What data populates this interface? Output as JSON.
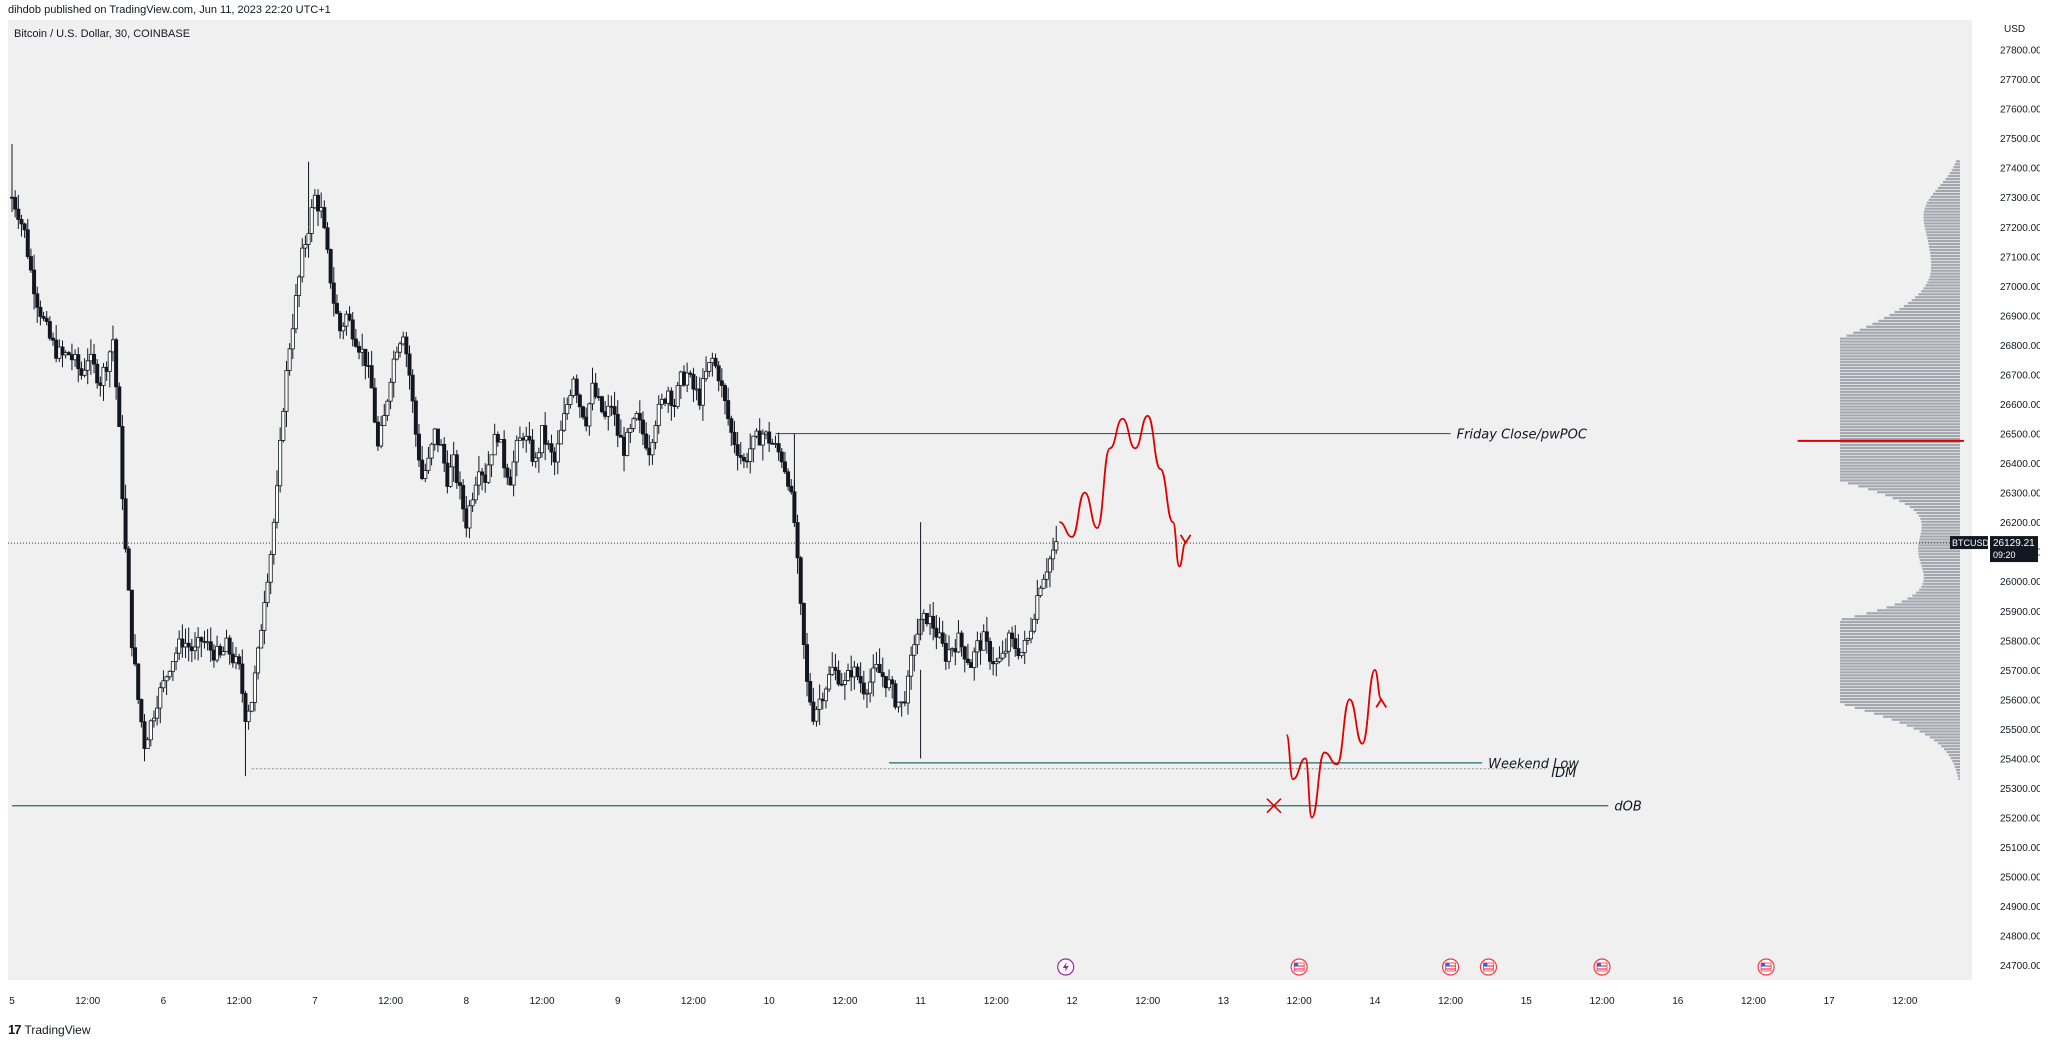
{
  "header": {
    "published_by": "dihdob published on TradingView.com, Jun 11, 2023 22:20 UTC+1"
  },
  "footer": {
    "brand": "TradingView"
  },
  "colors": {
    "plot_bg": "#f0f0f0",
    "candle": "#131722",
    "teal_line": "#1c6e6e",
    "red_drawing": "#e00000",
    "red_level": "#e00000",
    "profile": "#8a8f99",
    "price_label_bg": "#131722",
    "event_red": "#f23645",
    "event_purple": "#9c27b0"
  },
  "chart_data": {
    "type": "candlestick",
    "title": "Bitcoin / U.S. Dollar, 30, COINBASE",
    "symbol": "BTCUSD",
    "y_unit": "USD",
    "ylim": [
      24650,
      27900
    ],
    "y_ticks": [
      "24700.00",
      "24800.00",
      "24900.00",
      "25000.00",
      "25100.00",
      "25200.00",
      "25300.00",
      "25400.00",
      "25500.00",
      "25600.00",
      "25700.00",
      "25800.00",
      "25900.00",
      "26000.00",
      "26100.00",
      "26200.00",
      "26300.00",
      "26400.00",
      "26500.00",
      "26600.00",
      "26700.00",
      "26800.00",
      "26900.00",
      "27000.00",
      "27100.00",
      "27200.00",
      "27300.00",
      "27400.00",
      "27500.00",
      "27600.00",
      "27700.00",
      "27800.00"
    ],
    "x_ticks": [
      {
        "t": 0,
        "label": "5"
      },
      {
        "t": 12,
        "label": "12:00"
      },
      {
        "t": 24,
        "label": "6"
      },
      {
        "t": 36,
        "label": "12:00"
      },
      {
        "t": 48,
        "label": "7"
      },
      {
        "t": 60,
        "label": "12:00"
      },
      {
        "t": 72,
        "label": "8"
      },
      {
        "t": 84,
        "label": "12:00"
      },
      {
        "t": 96,
        "label": "9"
      },
      {
        "t": 108,
        "label": "12:00"
      },
      {
        "t": 120,
        "label": "10"
      },
      {
        "t": 132,
        "label": "12:00"
      },
      {
        "t": 144,
        "label": "11"
      },
      {
        "t": 156,
        "label": "12:00"
      },
      {
        "t": 168,
        "label": "12"
      },
      {
        "t": 180,
        "label": "12:00"
      },
      {
        "t": 192,
        "label": "13"
      },
      {
        "t": 204,
        "label": "12:00"
      },
      {
        "t": 216,
        "label": "14"
      },
      {
        "t": 228,
        "label": "12:00"
      },
      {
        "t": 240,
        "label": "15"
      },
      {
        "t": 252,
        "label": "12:00"
      },
      {
        "t": 264,
        "label": "16"
      },
      {
        "t": 276,
        "label": "12:00"
      },
      {
        "t": 288,
        "label": "17"
      },
      {
        "t": 300,
        "label": "12:00"
      }
    ],
    "price_path": [
      [
        0,
        27300
      ],
      [
        1,
        27250
      ],
      [
        2,
        27180
      ],
      [
        3,
        27050
      ],
      [
        4,
        26950
      ],
      [
        5,
        26880
      ],
      [
        6,
        26820
      ],
      [
        7,
        26780
      ],
      [
        8,
        26760
      ],
      [
        9,
        26770
      ],
      [
        10,
        26740
      ],
      [
        11,
        26700
      ],
      [
        12,
        26760
      ],
      [
        13,
        26720
      ],
      [
        14,
        26680
      ],
      [
        15,
        26740
      ],
      [
        16,
        26820
      ],
      [
        17,
        26500
      ],
      [
        18,
        26100
      ],
      [
        19,
        25800
      ],
      [
        20,
        25600
      ],
      [
        21,
        25450
      ],
      [
        22,
        25520
      ],
      [
        23,
        25600
      ],
      [
        24,
        25650
      ],
      [
        25,
        25720
      ],
      [
        26,
        25760
      ],
      [
        27,
        25800
      ],
      [
        28,
        25780
      ],
      [
        29,
        25760
      ],
      [
        30,
        25800
      ],
      [
        31,
        25780
      ],
      [
        32,
        25760
      ],
      [
        33,
        25740
      ],
      [
        34,
        25780
      ],
      [
        35,
        25740
      ],
      [
        36,
        25700
      ],
      [
        37,
        25550
      ],
      [
        38,
        25600
      ],
      [
        39,
        25750
      ],
      [
        40,
        25950
      ],
      [
        41,
        26100
      ],
      [
        42,
        26300
      ],
      [
        43,
        26600
      ],
      [
        44,
        26800
      ],
      [
        45,
        26950
      ],
      [
        46,
        27100
      ],
      [
        47,
        27200
      ],
      [
        48,
        27300
      ],
      [
        49,
        27250
      ],
      [
        50,
        27100
      ],
      [
        51,
        26950
      ],
      [
        52,
        26850
      ],
      [
        53,
        26900
      ],
      [
        54,
        26850
      ],
      [
        55,
        26800
      ],
      [
        56,
        26750
      ],
      [
        57,
        26650
      ],
      [
        58,
        26450
      ],
      [
        59,
        26550
      ],
      [
        60,
        26700
      ],
      [
        61,
        26800
      ],
      [
        62,
        26850
      ],
      [
        63,
        26700
      ],
      [
        64,
        26500
      ],
      [
        65,
        26350
      ],
      [
        66,
        26400
      ],
      [
        67,
        26500
      ],
      [
        68,
        26450
      ],
      [
        69,
        26350
      ],
      [
        70,
        26400
      ],
      [
        71,
        26300
      ],
      [
        72,
        26200
      ],
      [
        73,
        26300
      ],
      [
        74,
        26400
      ],
      [
        75,
        26350
      ],
      [
        76,
        26450
      ],
      [
        77,
        26500
      ],
      [
        78,
        26400
      ],
      [
        79,
        26350
      ],
      [
        80,
        26450
      ],
      [
        81,
        26500
      ],
      [
        82,
        26450
      ],
      [
        83,
        26400
      ],
      [
        84,
        26500
      ],
      [
        85,
        26450
      ],
      [
        86,
        26400
      ],
      [
        87,
        26500
      ],
      [
        88,
        26600
      ],
      [
        89,
        26700
      ],
      [
        90,
        26600
      ],
      [
        91,
        26550
      ],
      [
        92,
        26650
      ],
      [
        93,
        26600
      ],
      [
        94,
        26550
      ],
      [
        95,
        26600
      ],
      [
        96,
        26500
      ],
      [
        97,
        26450
      ],
      [
        98,
        26500
      ],
      [
        99,
        26550
      ],
      [
        100,
        26500
      ],
      [
        101,
        26450
      ],
      [
        102,
        26550
      ],
      [
        103,
        26600
      ],
      [
        104,
        26650
      ],
      [
        105,
        26600
      ],
      [
        106,
        26680
      ],
      [
        107,
        26700
      ],
      [
        108,
        26650
      ],
      [
        109,
        26620
      ],
      [
        110,
        26700
      ],
      [
        111,
        26750
      ],
      [
        112,
        26700
      ],
      [
        113,
        26600
      ],
      [
        114,
        26500
      ],
      [
        115,
        26450
      ],
      [
        116,
        26400
      ],
      [
        117,
        26450
      ],
      [
        118,
        26480
      ],
      [
        119,
        26500
      ],
      [
        120,
        26480
      ],
      [
        121,
        26450
      ],
      [
        122,
        26420
      ],
      [
        123,
        26350
      ],
      [
        124,
        26200
      ],
      [
        125,
        25900
      ],
      [
        126,
        25650
      ],
      [
        127,
        25550
      ],
      [
        128,
        25600
      ],
      [
        129,
        25650
      ],
      [
        130,
        25700
      ],
      [
        131,
        25680
      ],
      [
        132,
        25650
      ],
      [
        133,
        25700
      ],
      [
        134,
        25680
      ],
      [
        135,
        25640
      ],
      [
        136,
        25660
      ],
      [
        137,
        25700
      ],
      [
        138,
        25680
      ],
      [
        139,
        25650
      ],
      [
        140,
        25600
      ],
      [
        141,
        25580
      ],
      [
        142,
        25650
      ],
      [
        143,
        25800
      ],
      [
        144,
        25850
      ],
      [
        145,
        25880
      ],
      [
        146,
        25850
      ],
      [
        147,
        25800
      ],
      [
        148,
        25750
      ],
      [
        149,
        25780
      ],
      [
        150,
        25800
      ],
      [
        151,
        25760
      ],
      [
        152,
        25720
      ],
      [
        153,
        25780
      ],
      [
        154,
        25800
      ],
      [
        155,
        25750
      ],
      [
        156,
        25720
      ],
      [
        157,
        25740
      ],
      [
        158,
        25800
      ],
      [
        159,
        25780
      ],
      [
        160,
        25760
      ],
      [
        161,
        25800
      ],
      [
        162,
        25900
      ],
      [
        163,
        26000
      ],
      [
        164,
        26050
      ],
      [
        165,
        26100
      ],
      [
        166,
        26129
      ]
    ],
    "horizontal_levels": [
      {
        "label": "Friday Close/pwPOC",
        "price": 26500,
        "from_t": 121,
        "to_t": 228
      },
      {
        "label": "Weekend Low",
        "price": 25385,
        "from_t": 139,
        "to_t": 233
      },
      {
        "label": "IDM",
        "price": 25365,
        "from_t": 38,
        "to_t": 243
      },
      {
        "label": "dOB",
        "price": 25240,
        "from_t": 0,
        "to_t": 253
      }
    ],
    "current_price": {
      "value": 26129.21,
      "symbol": "BTCUSD",
      "countdown": "09:20"
    },
    "vpvr_poc_price": 26475,
    "projection_1": [
      [
        166,
        26200
      ],
      [
        168,
        26150
      ],
      [
        170,
        26300
      ],
      [
        172,
        26180
      ],
      [
        174,
        26450
      ],
      [
        176,
        26550
      ],
      [
        178,
        26450
      ],
      [
        180,
        26560
      ],
      [
        182,
        26380
      ],
      [
        184,
        26200
      ],
      [
        185,
        26050
      ],
      [
        186,
        26130
      ]
    ],
    "projection_2": [
      [
        202,
        25480
      ],
      [
        203,
        25330
      ],
      [
        205,
        25400
      ],
      [
        206,
        25200
      ],
      [
        208,
        25420
      ],
      [
        210,
        25380
      ],
      [
        212,
        25600
      ],
      [
        214,
        25450
      ],
      [
        216,
        25700
      ],
      [
        217,
        25600
      ]
    ],
    "invalidation_mark": {
      "t": 200,
      "price": 25240
    },
    "event_markers": [
      {
        "t": 167,
        "kind": "lightning"
      },
      {
        "t": 204,
        "kind": "us-flag"
      },
      {
        "t": 228,
        "kind": "us-flag"
      },
      {
        "t": 234,
        "kind": "us-flag"
      },
      {
        "t": 252,
        "kind": "us-flag"
      },
      {
        "t": 278,
        "kind": "us-flag"
      }
    ]
  }
}
